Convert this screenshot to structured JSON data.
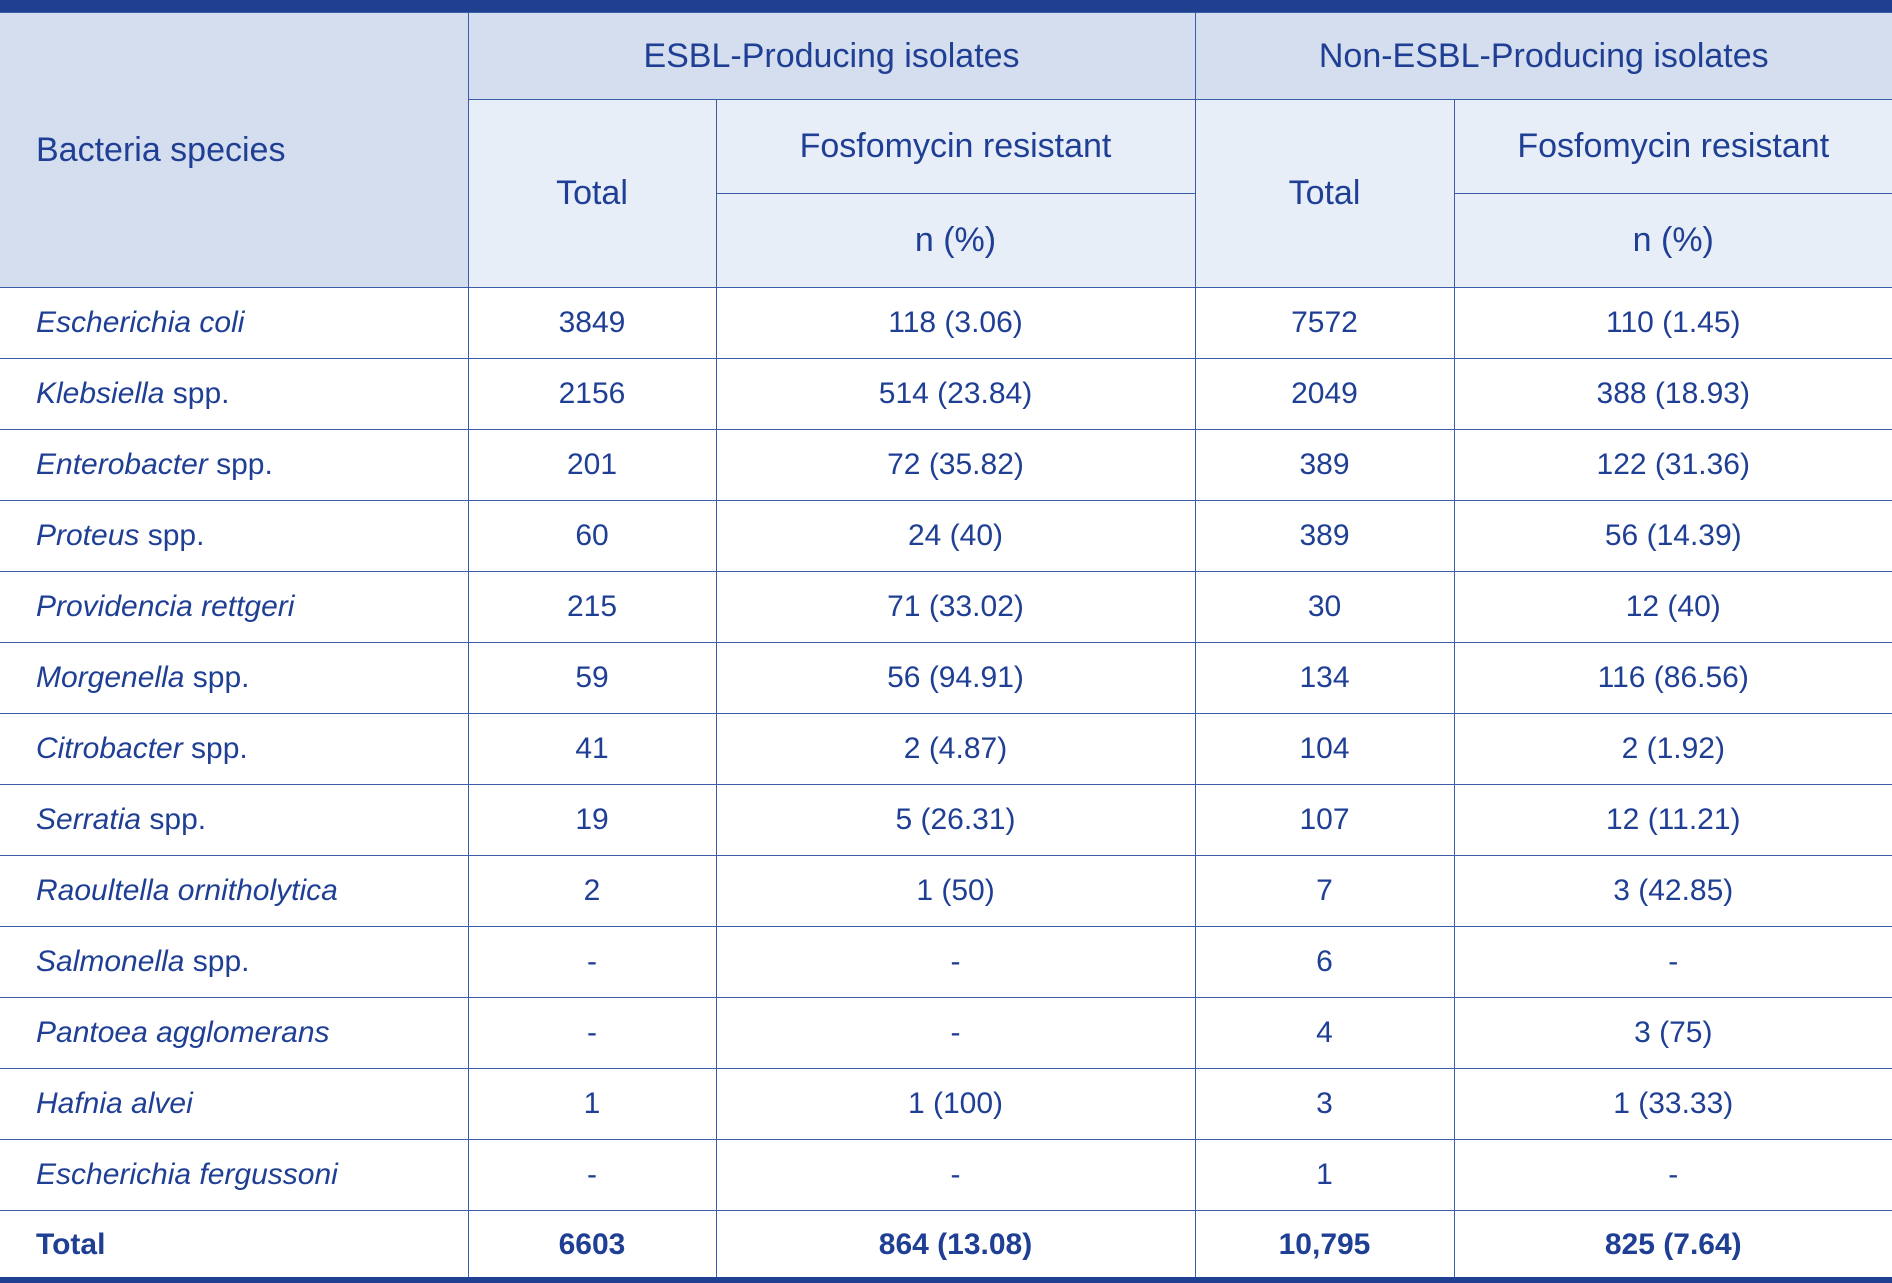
{
  "header": {
    "species_label": "Bacteria species",
    "group_esbl": "ESBL-Producing isolates",
    "group_non_esbl": "Non-ESBL-Producing isolates",
    "total_label": "Total",
    "fosfomycin_label": "Fosfomycin resistant",
    "n_pct_label": "n (%)"
  },
  "rows": [
    {
      "species": "Escherichia coli",
      "suffix": "",
      "esbl_total": "3849",
      "esbl_res": "118 (3.06)",
      "non_total": "7572",
      "non_res": "110 (1.45)"
    },
    {
      "species": "Klebsiella",
      "suffix": " spp.",
      "esbl_total": "2156",
      "esbl_res": "514 (23.84)",
      "non_total": "2049",
      "non_res": "388 (18.93)"
    },
    {
      "species": "Enterobacter",
      "suffix": " spp.",
      "esbl_total": "201",
      "esbl_res": "72 (35.82)",
      "non_total": "389",
      "non_res": "122 (31.36)"
    },
    {
      "species": "Proteus",
      "suffix": " spp.",
      "esbl_total": "60",
      "esbl_res": "24 (40)",
      "non_total": "389",
      "non_res": "56 (14.39)"
    },
    {
      "species": "Providencia rettgeri",
      "suffix": "",
      "esbl_total": "215",
      "esbl_res": "71 (33.02)",
      "non_total": "30",
      "non_res": "12 (40)"
    },
    {
      "species": "Morgenella",
      "suffix": " spp.",
      "esbl_total": "59",
      "esbl_res": "56 (94.91)",
      "non_total": "134",
      "non_res": "116 (86.56)"
    },
    {
      "species": "Citrobacter",
      "suffix": " spp.",
      "esbl_total": "41",
      "esbl_res": "2 (4.87)",
      "non_total": "104",
      "non_res": "2 (1.92)"
    },
    {
      "species": "Serratia",
      "suffix": " spp.",
      "esbl_total": "19",
      "esbl_res": "5 (26.31)",
      "non_total": "107",
      "non_res": "12 (11.21)"
    },
    {
      "species": "Raoultella ornitholytica",
      "suffix": "",
      "esbl_total": "2",
      "esbl_res": "1 (50)",
      "non_total": "7",
      "non_res": "3 (42.85)"
    },
    {
      "species": "Salmonella",
      "suffix": " spp.",
      "esbl_total": "-",
      "esbl_res": "-",
      "non_total": "6",
      "non_res": "-"
    },
    {
      "species": "Pantoea agglomerans",
      "suffix": "",
      "esbl_total": "-",
      "esbl_res": "-",
      "non_total": "4",
      "non_res": "3 (75)"
    },
    {
      "species": "Hafnia alvei",
      "suffix": "",
      "esbl_total": "1",
      "esbl_res": "1 (100)",
      "non_total": "3",
      "non_res": "1 (33.33)"
    },
    {
      "species": "Escherichia fergussoni",
      "suffix": "",
      "esbl_total": "-",
      "esbl_res": "-",
      "non_total": "1",
      "non_res": "-"
    }
  ],
  "total_row": {
    "label": "Total",
    "esbl_total": "6603",
    "esbl_res": "864 (13.08)",
    "non_total": "10,795",
    "non_res": "825 (7.64)"
  }
}
